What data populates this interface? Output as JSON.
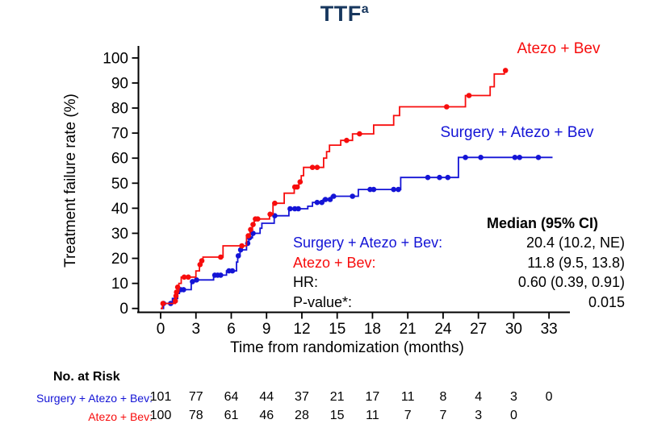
{
  "title": {
    "text": "TTF",
    "superscript": "a"
  },
  "colors": {
    "red": "#f70d0d",
    "blue": "#1414d6",
    "navy": "#17375e",
    "axis": "#000000",
    "text": "#000000"
  },
  "chart_data": {
    "type": "line",
    "subtype": "kaplan-meier-step-cumulative-incidence",
    "title": "TTF(a)",
    "xlabel": "Time from randomization (months)",
    "ylabel": "Treatment failure rate (%)",
    "xlim": [
      0,
      34.5
    ],
    "ylim": [
      0,
      100
    ],
    "xticks": [
      0,
      3,
      6,
      9,
      12,
      15,
      18,
      21,
      24,
      27,
      30,
      33
    ],
    "yticks": [
      0,
      10,
      20,
      30,
      40,
      50,
      60,
      70,
      80,
      90,
      100
    ],
    "grid": false,
    "legend_position": "inline-labels",
    "series": [
      {
        "name": "Surgery + Atezo + Bev",
        "color_key": "blue",
        "steps": [
          [
            0,
            0
          ],
          [
            0.25,
            2
          ],
          [
            1.0,
            4
          ],
          [
            1.45,
            6
          ],
          [
            1.6,
            7.5
          ],
          [
            2.6,
            10.7
          ],
          [
            2.95,
            11.4
          ],
          [
            4.5,
            13.3
          ],
          [
            5.6,
            15
          ],
          [
            6.45,
            18.5
          ],
          [
            6.55,
            21
          ],
          [
            6.75,
            23.4
          ],
          [
            7.3,
            26
          ],
          [
            7.5,
            28.2
          ],
          [
            7.8,
            30
          ],
          [
            8.45,
            32
          ],
          [
            8.6,
            34
          ],
          [
            9.65,
            37
          ],
          [
            10.9,
            39.8
          ],
          [
            12.5,
            40.8
          ],
          [
            12.9,
            42.3
          ],
          [
            13.8,
            43.5
          ],
          [
            14.5,
            44.8
          ],
          [
            16.8,
            47.5
          ],
          [
            20.4,
            52.3
          ],
          [
            25.3,
            60.3
          ]
        ],
        "end_month": 33.3,
        "censor_dots": [
          [
            0.25,
            2
          ],
          [
            0.85,
            2
          ],
          [
            1.7,
            7.5
          ],
          [
            1.95,
            7.5
          ],
          [
            2.7,
            10.7
          ],
          [
            3.05,
            11.4
          ],
          [
            4.6,
            13.3
          ],
          [
            4.85,
            13.3
          ],
          [
            5.1,
            13.3
          ],
          [
            5.8,
            15
          ],
          [
            6.1,
            15
          ],
          [
            6.6,
            21
          ],
          [
            6.8,
            23.4
          ],
          [
            7.4,
            26
          ],
          [
            7.55,
            28.2
          ],
          [
            7.85,
            30
          ],
          [
            9.7,
            37
          ],
          [
            11.0,
            39.8
          ],
          [
            11.4,
            39.8
          ],
          [
            11.7,
            39.8
          ],
          [
            13.3,
            42.3
          ],
          [
            13.7,
            42.3
          ],
          [
            14.0,
            43.5
          ],
          [
            14.4,
            43.5
          ],
          [
            14.7,
            44.8
          ],
          [
            16.3,
            44.8
          ],
          [
            17.8,
            47.5
          ],
          [
            18.1,
            47.5
          ],
          [
            19.8,
            47.5
          ],
          [
            20.2,
            47.5
          ],
          [
            22.7,
            52.3
          ],
          [
            23.7,
            52.3
          ],
          [
            24.4,
            52.3
          ],
          [
            25.9,
            60.3
          ],
          [
            27.2,
            60.3
          ],
          [
            30.1,
            60.3
          ],
          [
            30.5,
            60.3
          ],
          [
            32.1,
            60.3
          ]
        ]
      },
      {
        "name": "Atezo + Bev",
        "color_key": "red",
        "steps": [
          [
            0,
            0
          ],
          [
            0.15,
            2
          ],
          [
            1.25,
            4
          ],
          [
            1.35,
            7
          ],
          [
            1.55,
            10
          ],
          [
            1.75,
            12.5
          ],
          [
            3.0,
            15
          ],
          [
            3.3,
            17.5
          ],
          [
            3.45,
            19
          ],
          [
            3.6,
            20.5
          ],
          [
            5.3,
            25
          ],
          [
            7.3,
            29
          ],
          [
            7.6,
            31.5
          ],
          [
            7.8,
            33.5
          ],
          [
            7.95,
            35.7
          ],
          [
            9.25,
            37.6
          ],
          [
            9.55,
            42
          ],
          [
            10.5,
            46
          ],
          [
            11.35,
            48.5
          ],
          [
            11.75,
            50.5
          ],
          [
            11.95,
            53
          ],
          [
            12.15,
            56.3
          ],
          [
            13.85,
            60
          ],
          [
            14.1,
            62.6
          ],
          [
            14.35,
            65.2
          ],
          [
            15.3,
            67.1
          ],
          [
            16.3,
            69.7
          ],
          [
            18.1,
            73.2
          ],
          [
            19.8,
            77
          ],
          [
            20.3,
            80.5
          ],
          [
            25.9,
            85
          ],
          [
            28.0,
            88.5
          ],
          [
            28.35,
            93.6
          ],
          [
            29.2,
            95
          ]
        ],
        "end_month": 29.5,
        "censor_dots": [
          [
            0.2,
            2
          ],
          [
            1.25,
            3
          ],
          [
            1.3,
            5
          ],
          [
            1.35,
            6.5
          ],
          [
            1.45,
            8.5
          ],
          [
            2.0,
            12.5
          ],
          [
            2.35,
            12.5
          ],
          [
            3.35,
            17.5
          ],
          [
            3.5,
            19
          ],
          [
            5.1,
            20.5
          ],
          [
            6.9,
            25
          ],
          [
            7.45,
            29
          ],
          [
            7.65,
            31.5
          ],
          [
            7.85,
            33.5
          ],
          [
            8.05,
            35.7
          ],
          [
            8.25,
            35.7
          ],
          [
            9.3,
            37.6
          ],
          [
            9.7,
            42
          ],
          [
            11.4,
            48.5
          ],
          [
            11.6,
            48.5
          ],
          [
            11.85,
            50.5
          ],
          [
            12.9,
            56.3
          ],
          [
            13.3,
            56.3
          ],
          [
            15.8,
            67.1
          ],
          [
            16.9,
            69.7
          ],
          [
            24.3,
            80.5
          ],
          [
            26.2,
            85
          ],
          [
            29.3,
            95
          ]
        ]
      }
    ]
  },
  "legend": {
    "red_label": "Atezo + Bev",
    "blue_label": "Surgery + Atezo + Bev"
  },
  "stats": {
    "header": "Median (95% CI)",
    "rows": [
      {
        "label": "Surgery + Atezo + Bev:",
        "value": "20.4 (10.2, NE)",
        "color_key": "blue"
      },
      {
        "label": "Atezo + Bev:",
        "value": "11.8 (9.5, 13.8)",
        "color_key": "red"
      },
      {
        "label": "HR:",
        "value": "0.60 (0.39, 0.91)",
        "color_key": "text"
      },
      {
        "label": "P-value*:",
        "value": "0.015",
        "color_key": "text"
      }
    ]
  },
  "at_risk": {
    "header": "No. at Risk",
    "rows": [
      {
        "label": "Surgery + Atezo + Bev:",
        "color_key": "blue",
        "values": [
          101,
          77,
          64,
          44,
          37,
          21,
          17,
          11,
          8,
          4,
          3,
          0
        ]
      },
      {
        "label": "Atezo + Bev:",
        "color_key": "red",
        "values": [
          100,
          78,
          61,
          46,
          28,
          15,
          11,
          7,
          7,
          3,
          0
        ]
      }
    ]
  }
}
